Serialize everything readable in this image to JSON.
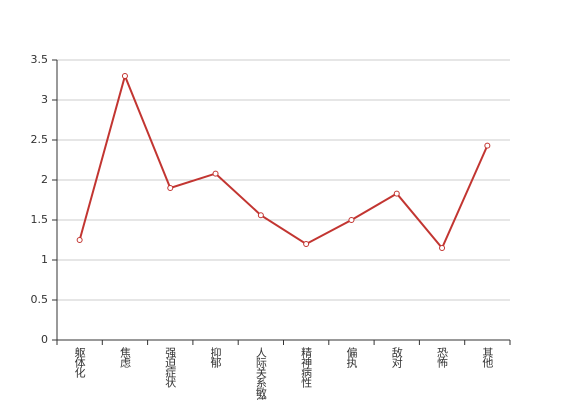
{
  "chart_data": {
    "type": "line",
    "categories": [
      "躯体化",
      "焦虑",
      "强迫症状",
      "抑郁",
      "人际关系敏感",
      "精神病性",
      "偏执",
      "敌对",
      "恐怖",
      "其他"
    ],
    "values": [
      1.25,
      3.3,
      1.9,
      2.08,
      1.56,
      1.2,
      1.5,
      1.83,
      1.15,
      2.43
    ],
    "color": "#c23531",
    "ylim": [
      0,
      3.5
    ],
    "yticks": [
      0,
      0.5,
      1,
      1.5,
      2,
      2.5,
      3,
      3.5
    ],
    "grid": true
  }
}
